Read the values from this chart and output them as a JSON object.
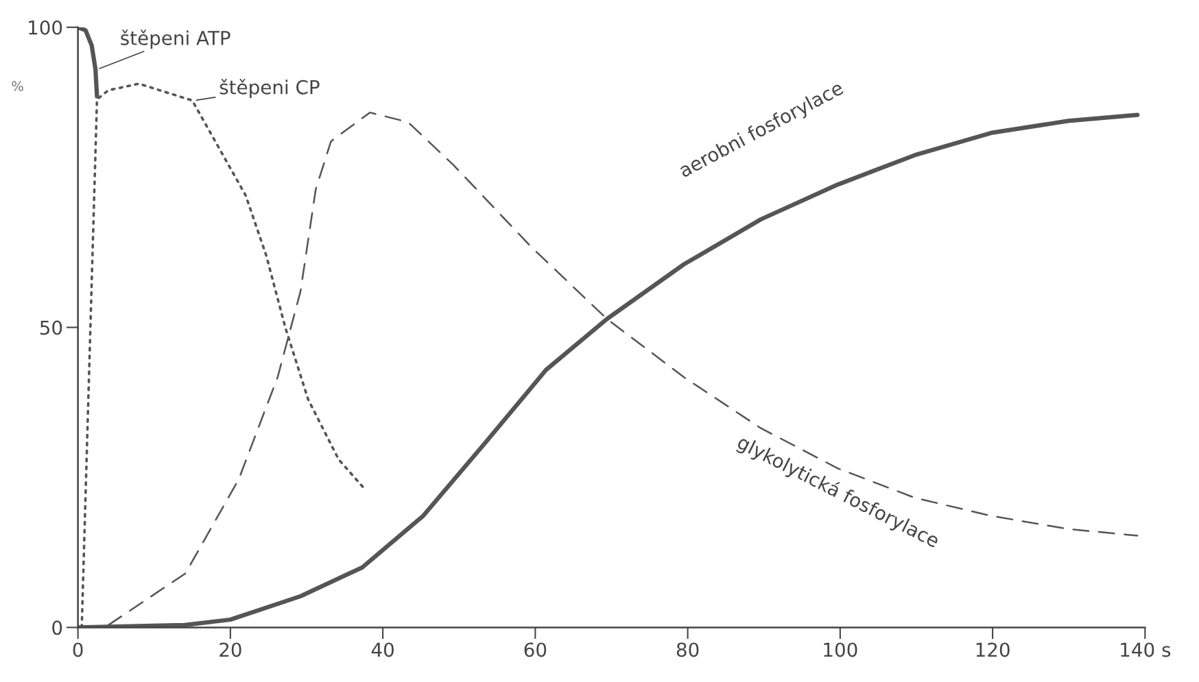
{
  "chart_data": {
    "type": "line",
    "ylabel": "%",
    "xlim": [
      0,
      140
    ],
    "ylim": [
      0,
      100
    ],
    "xticks": [
      0,
      20,
      40,
      60,
      80,
      100,
      120,
      {
        "value": 140,
        "label": "140 s"
      }
    ],
    "yticks": [
      0,
      50,
      100
    ],
    "grid": false,
    "legend": false,
    "series": [
      {
        "name": "štěpeni ATP",
        "color": "#555555",
        "line_style": "solid",
        "x": [
          0,
          1,
          1.8,
          2.3,
          2.5
        ],
        "values": [
          100,
          99.5,
          97,
          93,
          88.5
        ]
      },
      {
        "name": "štěpeni CP",
        "color": "#555555",
        "line_style": "dotted",
        "x": [
          0.5,
          2.5,
          4,
          8,
          15,
          22,
          24.7,
          27.2,
          30.2,
          34.2,
          37.8
        ],
        "values": [
          0,
          88,
          89.5,
          90.6,
          87.8,
          72,
          62,
          50,
          38,
          28,
          22.8
        ]
      },
      {
        "name": "glykolytická fosforylace",
        "color": "#555555",
        "line_style": "dashed",
        "x": [
          4,
          14.1,
          21.1,
          26.2,
          29.2,
          31.2,
          33.2,
          38.3,
          43.3,
          49.3,
          59.4,
          69.4,
          79.5,
          89.6,
          99.7,
          109.8,
          119.8,
          129.9,
          139
        ],
        "values": [
          0.4,
          9,
          24.7,
          41.7,
          56,
          73,
          81,
          85.8,
          84.2,
          77,
          63.5,
          51.4,
          41.7,
          33.2,
          26.5,
          21.6,
          18.6,
          16.4,
          15.3
        ]
      },
      {
        "name": "aerobni fosforylace",
        "color": "#555555",
        "line_style": "solid",
        "x": [
          0,
          14,
          20,
          29.2,
          37.3,
          45.3,
          53.4,
          61.4,
          69.4,
          79.5,
          89.6,
          99.7,
          109.8,
          119.8,
          129.9,
          139
        ],
        "values": [
          0,
          0.4,
          1.3,
          5.2,
          10,
          18.6,
          30.7,
          42.9,
          51.4,
          60.5,
          68,
          73.8,
          78.7,
          82.4,
          84.4,
          85.4
        ]
      }
    ]
  }
}
